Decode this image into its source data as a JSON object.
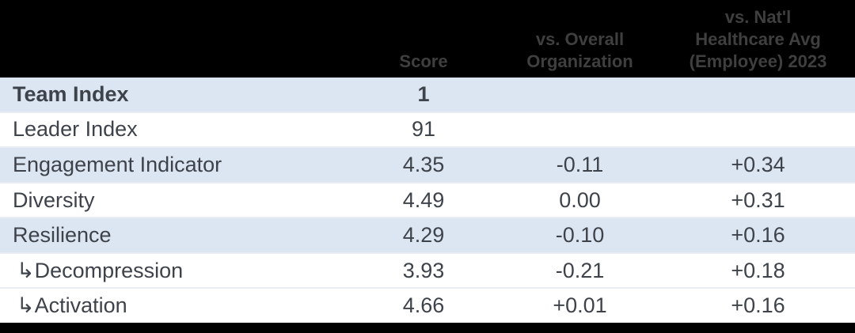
{
  "header": {
    "columns": [
      "",
      "Score",
      "vs. Overall\nOrganization",
      "vs. Nat'l\nHealthcare Avg\n(Employee) 2023"
    ]
  },
  "rows": [
    {
      "label": "Team Index",
      "score": "1",
      "vs_overall": "",
      "vs_natl": "",
      "shaded": true,
      "bold": true,
      "indent": false
    },
    {
      "label": "Leader Index",
      "score": "91",
      "vs_overall": "",
      "vs_natl": "",
      "shaded": false,
      "bold": false,
      "indent": false
    },
    {
      "label": "Engagement Indicator",
      "score": "4.35",
      "vs_overall": "-0.11",
      "vs_natl": "+0.34",
      "shaded": true,
      "bold": false,
      "indent": false
    },
    {
      "label": "Diversity",
      "score": "4.49",
      "vs_overall": "0.00",
      "vs_natl": "+0.31",
      "shaded": false,
      "bold": false,
      "indent": false
    },
    {
      "label": "Resilience",
      "score": "4.29",
      "vs_overall": "-0.10",
      "vs_natl": "+0.16",
      "shaded": true,
      "bold": false,
      "indent": false
    },
    {
      "label": "↳Decompression",
      "score": "3.93",
      "vs_overall": "-0.21",
      "vs_natl": "+0.18",
      "shaded": false,
      "bold": false,
      "indent": true
    },
    {
      "label": "↳Activation",
      "score": "4.66",
      "vs_overall": "+0.01",
      "vs_natl": "+0.16",
      "shaded": false,
      "bold": false,
      "indent": true
    }
  ],
  "colors": {
    "header_bg": "#000000",
    "header_text": "#3f3f3f",
    "shaded_row_bg": "#dce6f2",
    "row_bg": "#ffffff",
    "body_text": "#3e434b",
    "row_divider": "#e9edf3",
    "bottom_bar_bg": "#000000"
  },
  "chart_data": {
    "type": "table",
    "columns": [
      "",
      "Score",
      "vs. Overall Organization",
      "vs. Nat'l Healthcare Avg (Employee) 2023"
    ],
    "rows": [
      [
        "Team Index",
        "1",
        "",
        ""
      ],
      [
        "Leader Index",
        "91",
        "",
        ""
      ],
      [
        "Engagement Indicator",
        "4.35",
        "-0.11",
        "+0.34"
      ],
      [
        "Diversity",
        "4.49",
        "0.00",
        "+0.31"
      ],
      [
        "Resilience",
        "4.29",
        "-0.10",
        "+0.16"
      ],
      [
        "↳Decompression",
        "3.93",
        "-0.21",
        "+0.18"
      ],
      [
        "↳Activation",
        "4.66",
        "+0.01",
        "+0.16"
      ]
    ],
    "notes": "Team Index row is bold and shaded; shaded rows use light blue #dce6f2; header is black with dark gray bold text"
  }
}
